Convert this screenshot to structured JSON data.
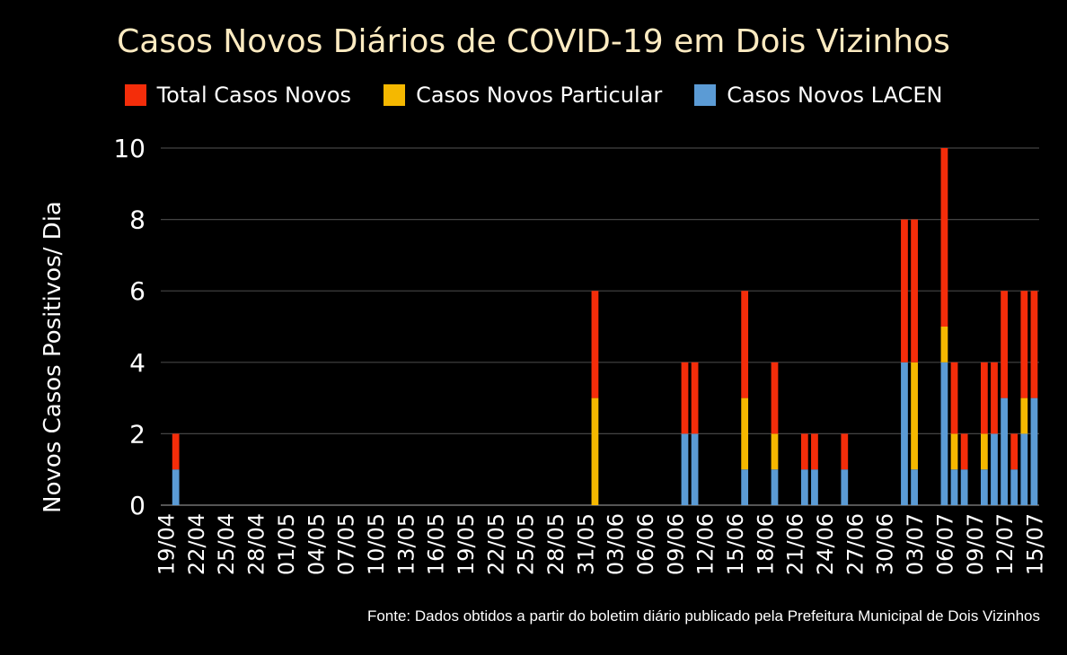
{
  "colors": {
    "total": "#f42d0a",
    "particular": "#f5b800",
    "lacen": "#5b9bd5",
    "grid": "#444444",
    "title": "#fdebc1"
  },
  "title": "Casos Novos Diários de COVID-19 em Dois Vizinhos",
  "legend": {
    "total": "Total Casos Novos",
    "particular": "Casos Novos Particular",
    "lacen": "Casos Novos LACEN"
  },
  "source": "Fonte: Dados obtidos a partir do boletim diário publicado pela Prefeitura Municipal de Dois Vizinhos",
  "chart_data": {
    "type": "bar",
    "stacked": true,
    "title": "Casos Novos Diários de COVID-19 em Dois Vizinhos",
    "xlabel": "",
    "ylabel": "Novos Casos Positivos/ Dia",
    "ylim": [
      0,
      10
    ],
    "yticks": [
      0,
      2,
      4,
      6,
      8,
      10
    ],
    "grid": true,
    "legend_position": "top",
    "x_start": "19/04",
    "x_end": "15/07",
    "x_ticks": [
      "19/04",
      "22/04",
      "25/04",
      "28/04",
      "01/05",
      "04/05",
      "07/05",
      "10/05",
      "13/05",
      "16/05",
      "19/05",
      "22/05",
      "25/05",
      "28/05",
      "31/05",
      "03/06",
      "06/06",
      "09/06",
      "12/06",
      "15/06",
      "18/06",
      "21/06",
      "24/06",
      "27/06",
      "30/06",
      "03/07",
      "06/07",
      "09/07",
      "12/07",
      "15/07"
    ],
    "bars": [
      {
        "date": "20/04",
        "lacen": 1,
        "particular": 0,
        "total": 2
      },
      {
        "date": "01/06",
        "lacen": 0,
        "particular": 3,
        "total": 6
      },
      {
        "date": "10/06",
        "lacen": 2,
        "particular": 0,
        "total": 4
      },
      {
        "date": "11/06",
        "lacen": 2,
        "particular": 0,
        "total": 4
      },
      {
        "date": "16/06",
        "lacen": 1,
        "particular": 2,
        "total": 6
      },
      {
        "date": "19/06",
        "lacen": 1,
        "particular": 1,
        "total": 4
      },
      {
        "date": "22/06",
        "lacen": 1,
        "particular": 0,
        "total": 2
      },
      {
        "date": "23/06",
        "lacen": 1,
        "particular": 0,
        "total": 2
      },
      {
        "date": "26/06",
        "lacen": 1,
        "particular": 0,
        "total": 2
      },
      {
        "date": "02/07",
        "lacen": 4,
        "particular": 0,
        "total": 8
      },
      {
        "date": "03/07",
        "lacen": 1,
        "particular": 3,
        "total": 8
      },
      {
        "date": "06/07",
        "lacen": 4,
        "particular": 1,
        "total": 10
      },
      {
        "date": "07/07",
        "lacen": 1,
        "particular": 1,
        "total": 4
      },
      {
        "date": "08/07",
        "lacen": 1,
        "particular": 0,
        "total": 2
      },
      {
        "date": "10/07",
        "lacen": 1,
        "particular": 1,
        "total": 4
      },
      {
        "date": "11/07",
        "lacen": 2,
        "particular": 0,
        "total": 4
      },
      {
        "date": "12/07",
        "lacen": 3,
        "particular": 0,
        "total": 6
      },
      {
        "date": "13/07",
        "lacen": 1,
        "particular": 0,
        "total": 2
      },
      {
        "date": "14/07",
        "lacen": 2,
        "particular": 1,
        "total": 6
      },
      {
        "date": "15/07",
        "lacen": 3,
        "particular": 0,
        "total": 6
      }
    ]
  }
}
